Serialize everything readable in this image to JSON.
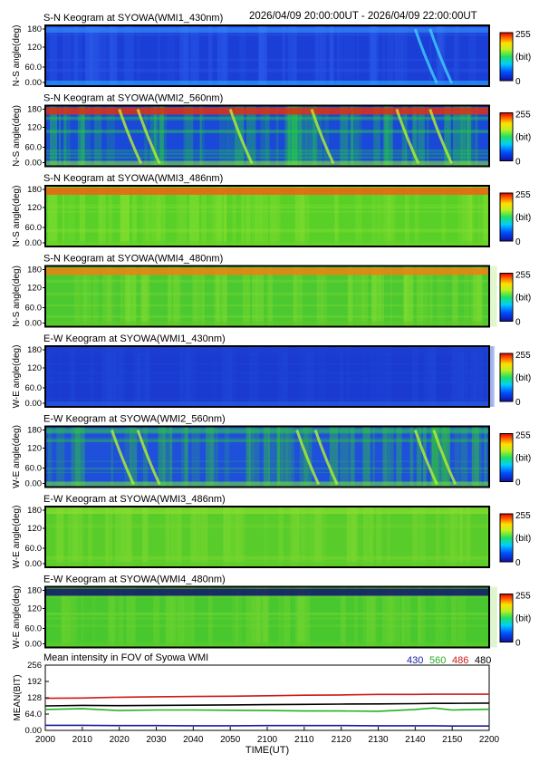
{
  "header": {
    "title": "S-N Keogram at SYOWA(WMI1_430nm)",
    "time_range": "2026/04/09 20:00:00UT - 2026/04/09 22:00:00UT"
  },
  "keograms": [
    {
      "title": "S-N Keogram at SYOWA(WMI1_430nm)",
      "ylabel": "N-S angle(deg)"
    },
    {
      "title": "S-N Keogram at SYOWA(WMI2_560nm)",
      "ylabel": "N-S angle(deg)"
    },
    {
      "title": "S-N Keogram at SYOWA(WMI3_486nm)",
      "ylabel": "N-S angle(deg)"
    },
    {
      "title": "S-N Keogram at SYOWA(WMI4_480nm)",
      "ylabel": "N-S angle(deg)"
    },
    {
      "title": "E-W Keogram at SYOWA(WMI1_430nm)",
      "ylabel": "W-E angle(deg)"
    },
    {
      "title": "E-W Keogram at SYOWA(WMI2_560nm)",
      "ylabel": "W-E angle(deg)"
    },
    {
      "title": "E-W Keogram at SYOWA(WMI3_486nm)",
      "ylabel": "W-E angle(deg)"
    },
    {
      "title": "E-W Keogram at SYOWA(WMI4_480nm)",
      "ylabel": "W-E angle(deg)"
    }
  ],
  "keogram_yticks": [
    "180",
    "120",
    "60.0",
    "0.00"
  ],
  "colorbar": {
    "max": "255",
    "unit": "(bit)",
    "min": "0"
  },
  "mean_panel": {
    "title": "Mean intensity in FOV of Syowa WMI",
    "ylabel": "MEAN(BIT)",
    "yticks": [
      "256",
      "192",
      "128",
      "64.0",
      "0.00"
    ],
    "legend": [
      {
        "label": "430",
        "color": "#1a1aa0"
      },
      {
        "label": "560",
        "color": "#22b022"
      },
      {
        "label": "486",
        "color": "#cc1a1a"
      },
      {
        "label": "480",
        "color": "#000000"
      }
    ]
  },
  "x_axis": {
    "label": "TIME(UT)",
    "ticks": [
      "2000",
      "2010",
      "2020",
      "2030",
      "2040",
      "2050",
      "2100",
      "2110",
      "2120",
      "2130",
      "2140",
      "2150",
      "2200"
    ]
  },
  "chart_data": [
    {
      "type": "heatmap",
      "title": "S-N Keogram at SYOWA(WMI1_430nm)",
      "xlabel": "TIME(UT)",
      "ylabel": "N-S angle(deg)",
      "xlim": [
        "20:00",
        "22:00"
      ],
      "ylim": [
        0,
        180
      ],
      "colorbar": [
        0,
        255
      ],
      "description_values": {
        "typical_level": 40,
        "bright_arc_times_min": [
          100,
          104
        ]
      }
    },
    {
      "type": "heatmap",
      "title": "S-N Keogram at SYOWA(WMI2_560nm)",
      "xlabel": "TIME(UT)",
      "ylabel": "N-S angle(deg)",
      "xlim": [
        "20:00",
        "22:00"
      ],
      "ylim": [
        0,
        180
      ],
      "colorbar": [
        0,
        255
      ],
      "description_values": {
        "typical_level": 80,
        "bright_arc_times_min": [
          20,
          25,
          50,
          72,
          95,
          104
        ]
      }
    },
    {
      "type": "heatmap",
      "title": "S-N Keogram at SYOWA(WMI3_486nm)",
      "xlabel": "TIME(UT)",
      "ylabel": "N-S angle(deg)",
      "xlim": [
        "20:00",
        "22:00"
      ],
      "ylim": [
        0,
        180
      ],
      "colorbar": [
        0,
        255
      ],
      "description_values": {
        "typical_level": 150,
        "top_band_level": 230
      }
    },
    {
      "type": "heatmap",
      "title": "S-N Keogram at SYOWA(WMI4_480nm)",
      "xlabel": "TIME(UT)",
      "ylabel": "N-S angle(deg)",
      "xlim": [
        "20:00",
        "22:00"
      ],
      "ylim": [
        0,
        180
      ],
      "colorbar": [
        0,
        255
      ],
      "description_values": {
        "typical_level": 150,
        "top_band_level": 225
      }
    },
    {
      "type": "heatmap",
      "title": "E-W Keogram at SYOWA(WMI1_430nm)",
      "xlabel": "TIME(UT)",
      "ylabel": "W-E angle(deg)",
      "xlim": [
        "20:00",
        "22:00"
      ],
      "ylim": [
        0,
        180
      ],
      "colorbar": [
        0,
        255
      ],
      "description_values": {
        "typical_level": 40
      }
    },
    {
      "type": "heatmap",
      "title": "E-W Keogram at SYOWA(WMI2_560nm)",
      "xlabel": "TIME(UT)",
      "ylabel": "W-E angle(deg)",
      "xlim": [
        "20:00",
        "22:00"
      ],
      "ylim": [
        0,
        180
      ],
      "colorbar": [
        0,
        255
      ],
      "description_values": {
        "typical_level": 85,
        "bright_arc_times_min": [
          18,
          25,
          68,
          73,
          100,
          105
        ]
      }
    },
    {
      "type": "heatmap",
      "title": "E-W Keogram at SYOWA(WMI3_486nm)",
      "xlabel": "TIME(UT)",
      "ylabel": "W-E angle(deg)",
      "xlim": [
        "20:00",
        "22:00"
      ],
      "ylim": [
        0,
        180
      ],
      "colorbar": [
        0,
        255
      ],
      "description_values": {
        "typical_level": 160
      }
    },
    {
      "type": "heatmap",
      "title": "E-W Keogram at SYOWA(WMI4_480nm)",
      "xlabel": "TIME(UT)",
      "ylabel": "W-E angle(deg)",
      "xlim": [
        "20:00",
        "22:00"
      ],
      "ylim": [
        0,
        180
      ],
      "colorbar": [
        0,
        255
      ],
      "description_values": {
        "typical_level": 150
      }
    },
    {
      "type": "line",
      "title": "Mean intensity in FOV of Syowa WMI",
      "xlabel": "TIME(UT)",
      "ylabel": "MEAN(BIT)",
      "xlim": [
        "20:00",
        "22:00"
      ],
      "ylim": [
        0,
        256
      ],
      "x_minutes": [
        0,
        10,
        20,
        30,
        40,
        50,
        60,
        70,
        80,
        90,
        100,
        105,
        110,
        120
      ],
      "series": [
        {
          "name": "430",
          "color": "#1a1aa0",
          "values": [
            20,
            20,
            19,
            19,
            18,
            18,
            19,
            19,
            19,
            18,
            18,
            18,
            17,
            17
          ]
        },
        {
          "name": "560",
          "color": "#22b022",
          "values": [
            82,
            85,
            78,
            80,
            80,
            79,
            78,
            76,
            76,
            75,
            82,
            88,
            80,
            83
          ]
        },
        {
          "name": "486",
          "color": "#cc1a1a",
          "values": [
            126,
            127,
            130,
            132,
            133,
            134,
            136,
            138,
            139,
            141,
            141,
            142,
            142,
            142
          ]
        },
        {
          "name": "480",
          "color": "#000000",
          "values": [
            96,
            98,
            97,
            98,
            99,
            100,
            101,
            102,
            103,
            104,
            105,
            106,
            106,
            107
          ]
        }
      ]
    }
  ]
}
